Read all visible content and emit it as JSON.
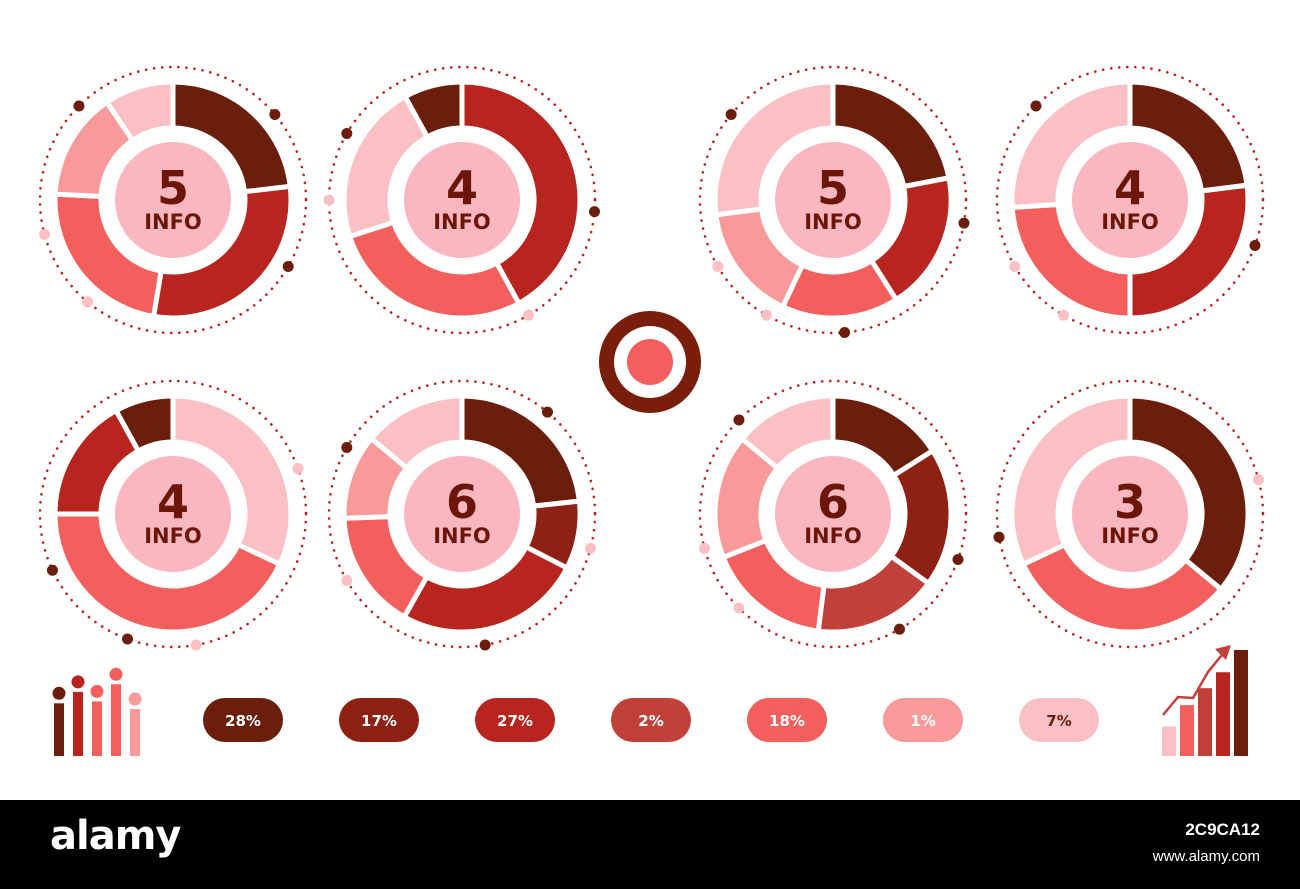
{
  "palette": [
    "#6b1e0c",
    "#8e2014",
    "#b8241e",
    "#c2403a",
    "#f25f5c",
    "#f89a9a",
    "#fbc0c4"
  ],
  "center_fill": "#fbb7bf",
  "dot_color": "#b8241e",
  "chart_data": [
    {
      "type": "pie",
      "number": "5",
      "label": "INFO",
      "values": [
        22,
        28,
        22,
        14,
        9
      ],
      "colors": [
        "#6b1e0c",
        "#b8241e",
        "#f25f5c",
        "#f89a9a",
        "#fbc0c4"
      ]
    },
    {
      "type": "pie",
      "number": "4",
      "label": "INFO",
      "values": [
        42,
        28,
        22,
        8
      ],
      "colors": [
        "#b8241e",
        "#f25f5c",
        "#fbc0c4",
        "#6b1e0c"
      ]
    },
    {
      "type": "pie",
      "number": "5",
      "label": "INFO",
      "values": [
        22,
        19,
        16,
        16,
        27
      ],
      "colors": [
        "#6b1e0c",
        "#b8241e",
        "#f25f5c",
        "#f89a9a",
        "#fbc0c4"
      ]
    },
    {
      "type": "pie",
      "number": "4",
      "label": "INFO",
      "values": [
        23,
        27,
        24,
        26
      ],
      "colors": [
        "#6b1e0c",
        "#b8241e",
        "#f25f5c",
        "#fbc0c4"
      ]
    },
    {
      "type": "pie",
      "number": "4",
      "label": "INFO",
      "values": [
        32,
        43,
        17,
        8
      ],
      "colors": [
        "#fbc0c4",
        "#f25f5c",
        "#b8241e",
        "#6b1e0c"
      ]
    },
    {
      "type": "pie",
      "number": "6",
      "label": "INFO",
      "values": [
        20,
        8,
        22,
        14,
        10,
        12
      ],
      "colors": [
        "#6b1e0c",
        "#8e2014",
        "#b8241e",
        "#f25f5c",
        "#f89a9a",
        "#fbc0c4"
      ]
    },
    {
      "type": "pie",
      "number": "6",
      "label": "INFO",
      "values": [
        16,
        19,
        17,
        17,
        17,
        14
      ],
      "colors": [
        "#6b1e0c",
        "#8e2014",
        "#c2403a",
        "#f25f5c",
        "#f89a9a",
        "#fbc0c4"
      ]
    },
    {
      "type": "pie",
      "number": "3",
      "label": "INFO",
      "values": [
        36,
        32,
        32
      ],
      "colors": [
        "#6b1e0c",
        "#f25f5c",
        "#fbc0c4"
      ]
    }
  ],
  "pills": [
    {
      "label": "28%",
      "color": "#6b1e0c",
      "text_color": "#ffffff"
    },
    {
      "label": "17%",
      "color": "#8e2014",
      "text_color": "#ffffff"
    },
    {
      "label": "27%",
      "color": "#b8241e",
      "text_color": "#ffffff"
    },
    {
      "label": "2%",
      "color": "#c2403a",
      "text_color": "#ffffff"
    },
    {
      "label": "18%",
      "color": "#f25f5c",
      "text_color": "#ffffff"
    },
    {
      "label": "1%",
      "color": "#f89a9a",
      "text_color": "#ffffff"
    },
    {
      "label": "7%",
      "color": "#fbc0c4",
      "text_color": "#6b1e0c"
    }
  ],
  "lollipop_icon": {
    "levels": [
      0.66,
      0.78,
      0.68,
      0.86,
      0.6
    ]
  },
  "growth_icon": {
    "levels": [
      0.28,
      0.48,
      0.64,
      0.79,
      1.0
    ]
  },
  "watermark": {
    "logo": "alamy",
    "image_id": "2C9CA12",
    "url": "www.alamy.com"
  }
}
